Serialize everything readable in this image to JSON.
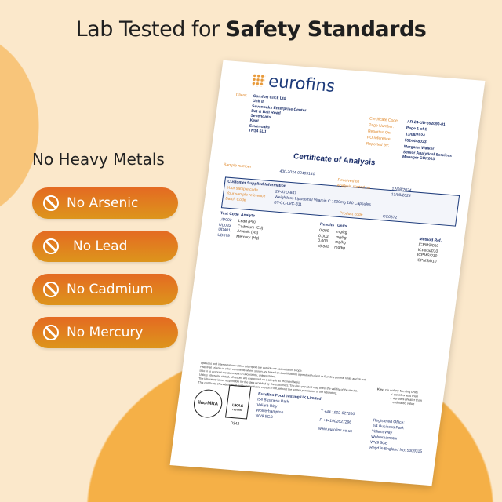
{
  "headline": {
    "regular": "Lab Tested for ",
    "bold": "Safety Standards"
  },
  "subheading": "No Heavy Metals",
  "badges": [
    {
      "label": "No Arsenic",
      "icon": "ban-icon"
    },
    {
      "label": "No Lead",
      "icon": "ban-icon"
    },
    {
      "label": "No Cadmium",
      "icon": "ban-icon"
    },
    {
      "label": "No Mercury",
      "icon": "ban-icon"
    }
  ],
  "colors": {
    "background": "#fbe8cb",
    "accent": "#f5b047",
    "badge_top": "#e46a22",
    "badge_bottom": "#dd951c",
    "doc_blue": "#1c2f6a"
  },
  "certificate": {
    "brand": "eurofins",
    "client_label": "Client:",
    "client_lines": [
      "Comfort Click Ltd",
      "Unit 8",
      "Sevenoaks Enterprise Center",
      "Bat & Ball Road",
      "Sevenoaks",
      "Kent",
      "Sevenoaks",
      "TN14 5LJ"
    ],
    "meta": [
      {
        "k": "Certificate Code:",
        "v": "AR-24-UD-392090-01"
      },
      {
        "k": "Page Number:",
        "v": "Page 1 of 1"
      },
      {
        "k": "Reported On:",
        "v": "13/08/2024"
      },
      {
        "k": "PO reference:",
        "v": "5514448033"
      },
      {
        "k": "Reported By:",
        "v": "Margaret Walker"
      }
    ],
    "reporter_title": [
      "Senior Analytical Services",
      "Manager CUK003"
    ],
    "title": "Certificate of Analysis",
    "sample_number_label": "Sample number",
    "sample_number": "400-2024-00409140",
    "received_label": "Received on",
    "received": "12/08/2024",
    "analysis_label": "Analysis started on",
    "analysis": "13/08/2024",
    "csi_title": "Customer Supplied Information",
    "csi": [
      {
        "k": "Your sample code",
        "v": "24-ATD-847"
      },
      {
        "k": "Your sample reference",
        "v": "Weightloss Liposomal Vitamin C 1000mg 180 Capsules"
      },
      {
        "k": "Batch Code",
        "v": "BT-CC-LVC-311"
      }
    ],
    "product_code_label": "Product code",
    "product_code": "CC0372",
    "cols": {
      "code": "Test Code",
      "analyte": "Analyte",
      "results": "Results",
      "units": "Units",
      "method": "Method Ref."
    },
    "rows": [
      {
        "code": "UD002",
        "analyte": "Lead (Pb)",
        "result": "0.009",
        "unit": "mg/kg",
        "method": "ICPMS/010"
      },
      {
        "code": "UD033",
        "analyte": "Cadmium (Cd)",
        "result": "0.003",
        "unit": "mg/kg",
        "method": "ICPMS/010"
      },
      {
        "code": "UD401",
        "analyte": "Arsenic (As)",
        "result": "0.008",
        "unit": "mg/kg",
        "method": "ICPMS/010"
      },
      {
        "code": "UD579",
        "analyte": "Mercury (Hg)",
        "result": "<0.005",
        "unit": "mg/kg",
        "method": "ICPMS/010"
      }
    ],
    "notes": [
      "Opinions and interpretations within this report are outside our accreditation scope.",
      "Pass/Fail criteria or other comments where shown are based on specifications agreed with client or Eurofins general limits and do not",
      "take in to account measurement of uncertainty, unless stated.",
      "Unless otherwise stated, all results are expressed on a sample as received basis.",
      "The laboratory is not responsible for the data provided by the customers. The data provided may affect the validity of the results.",
      "This certificate of analysis shall not be reproduced except in full, without the written permission of the laboratory."
    ],
    "key": {
      "label": "Key:",
      "lines": [
        "cfu colony forming units",
        "< denotes less than",
        "> denotes greater than",
        "~ estimated value"
      ]
    },
    "ilac": "ilac-MRA",
    "ukas": "UKAS",
    "ukas_sub": "TESTING",
    "ukas_num": "0342",
    "lab": [
      "Eurofins Food Testing UK Limited",
      "i54 Business Park",
      "Valiant Way",
      "Wolverhampton",
      "WV9 5GB"
    ],
    "phone": "T  +44 1902 627200",
    "fax": "F  +441902627296",
    "web": "www.eurofins.co.uk",
    "office": [
      "Registered Office:",
      "i54 Business Park",
      "Valiant Way",
      "Wolverhampton",
      "WV9 5GB",
      "Regd in England No: 5009315"
    ]
  }
}
